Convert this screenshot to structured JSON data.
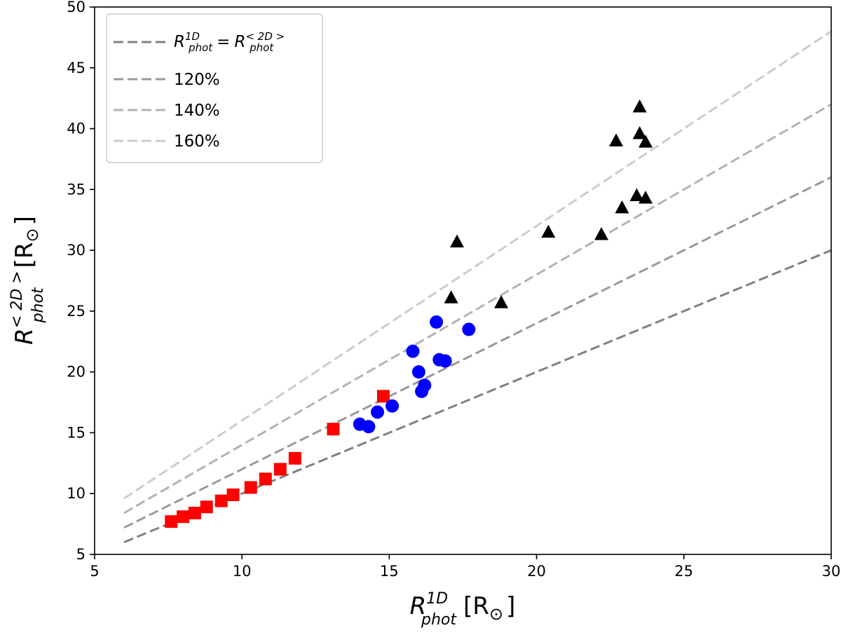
{
  "chart_data": {
    "type": "scatter",
    "title": "",
    "xlabel": {
      "main": "R",
      "sup": "1D",
      "sub": "phot",
      "unit": "[R",
      "unit_sub": "⊙",
      "unit_close": "]"
    },
    "ylabel": {
      "main": "R",
      "sup": "< 2D >",
      "sub": "phot",
      "unit": "[R",
      "unit_sub": "⊙",
      "unit_close": "]"
    },
    "xlim": [
      5,
      30
    ],
    "ylim": [
      5,
      50
    ],
    "x_ticks": [
      "5",
      "10",
      "15",
      "20",
      "25",
      "30"
    ],
    "y_ticks": [
      "5",
      "10",
      "15",
      "20",
      "25",
      "30",
      "35",
      "40",
      "45",
      "50"
    ],
    "grid": false,
    "legend_position": "top-left",
    "reference_lines": [
      {
        "name": "R_phot^1D = R_phot^<2D>",
        "slope": 1.0,
        "x_range": [
          6,
          30
        ],
        "color": "#808080",
        "label": {
          "main": "R",
          "sup": "1D",
          "sub": "phot",
          "eq": "=",
          "main2": "R",
          "sup2": "< 2D >",
          "sub2": "phot"
        }
      },
      {
        "name": "120%",
        "slope": 1.2,
        "x_range": [
          6,
          30
        ],
        "color": "#999999",
        "label_text": "120%"
      },
      {
        "name": "140%",
        "slope": 1.4,
        "x_range": [
          6,
          30
        ],
        "color": "#b3b3b3",
        "label_text": "140%"
      },
      {
        "name": "160%",
        "slope": 1.6,
        "x_range": [
          6,
          30
        ],
        "color": "#cccccc",
        "label_text": "160%"
      }
    ],
    "series": [
      {
        "name": "red squares",
        "marker": "square",
        "color": "#ff0000",
        "points": [
          [
            7.6,
            7.7
          ],
          [
            8.0,
            8.1
          ],
          [
            8.4,
            8.4
          ],
          [
            8.8,
            8.9
          ],
          [
            9.3,
            9.4
          ],
          [
            9.7,
            9.9
          ],
          [
            10.3,
            10.5
          ],
          [
            10.8,
            11.2
          ],
          [
            11.3,
            12.0
          ],
          [
            11.8,
            12.9
          ],
          [
            13.1,
            15.3
          ],
          [
            14.8,
            18.0
          ]
        ]
      },
      {
        "name": "blue circles",
        "marker": "circle",
        "color": "#0000ff",
        "points": [
          [
            14.0,
            15.7
          ],
          [
            14.3,
            15.5
          ],
          [
            14.6,
            16.7
          ],
          [
            15.1,
            17.2
          ],
          [
            15.8,
            21.7
          ],
          [
            16.0,
            20.0
          ],
          [
            16.1,
            18.4
          ],
          [
            16.2,
            18.9
          ],
          [
            16.6,
            24.1
          ],
          [
            16.7,
            21.0
          ],
          [
            16.9,
            20.9
          ],
          [
            17.7,
            23.5
          ]
        ]
      },
      {
        "name": "black triangles",
        "marker": "triangle",
        "color": "#000000",
        "points": [
          [
            17.1,
            26.1
          ],
          [
            17.3,
            30.7
          ],
          [
            18.8,
            25.7
          ],
          [
            20.4,
            31.5
          ],
          [
            22.2,
            31.3
          ],
          [
            22.7,
            39.0
          ],
          [
            22.9,
            33.5
          ],
          [
            23.4,
            34.5
          ],
          [
            23.5,
            41.8
          ],
          [
            23.5,
            39.6
          ],
          [
            23.7,
            38.9
          ],
          [
            23.7,
            34.3
          ]
        ]
      }
    ]
  }
}
